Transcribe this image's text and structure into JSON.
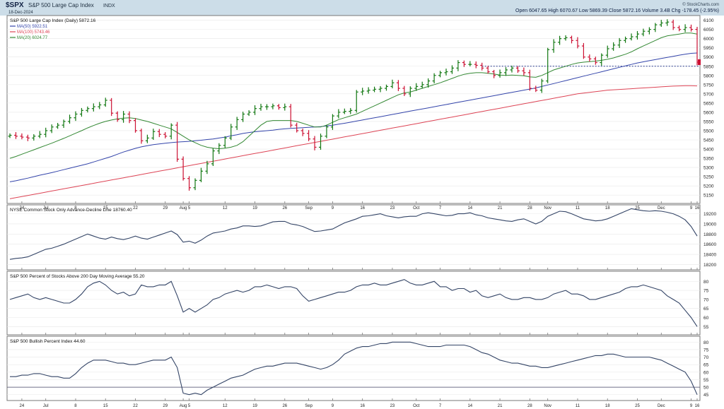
{
  "header": {
    "symbol": "$SPX",
    "name": "S&P 500 Large Cap Index",
    "exchange": "INDX",
    "date": "18-Dec-2024",
    "ohlc_text": "Open 6047.65  High 6070.67  Low 5869.39  Close 5872.16  Volume 3.4B  Chg -178.45 (-2.95%)",
    "brand": "© StockCharts.com",
    "colors": {
      "bar": "#3d6b95",
      "up": "#117711",
      "down": "#cc1133"
    }
  },
  "chart_data": [
    {
      "type": "ohlc",
      "title": "S&P 500 Large Cap Index (Daily) 5872.16",
      "legend": [
        {
          "label": "MA(50) 5922.51",
          "color": "#3344aa"
        },
        {
          "label": "MA(100) 5743.46",
          "color": "#dd4455"
        },
        {
          "label": "MA(20) 6024.77",
          "color": "#338833"
        }
      ],
      "y_ticks": [
        5150,
        5200,
        5250,
        5300,
        5350,
        5400,
        5450,
        5500,
        5550,
        5600,
        5650,
        5700,
        5750,
        5800,
        5850,
        5900,
        5950,
        6000,
        6050,
        6100
      ],
      "ylim": [
        5120,
        6110
      ],
      "reference_line": 5850,
      "x_ticks": [
        "24",
        "Jul",
        "8",
        "15",
        "22",
        "29",
        "Aug",
        "5",
        "12",
        "19",
        "26",
        "Sep",
        "9",
        "16",
        "23",
        "Oct",
        "7",
        "14",
        "21",
        "28",
        "Nov",
        "11",
        "18",
        "25",
        "Dec",
        "9",
        "16"
      ],
      "close": [
        5475,
        5470,
        5465,
        5460,
        5470,
        5480,
        5500,
        5520,
        5530,
        5550,
        5570,
        5590,
        5610,
        5620,
        5630,
        5640,
        5665,
        5595,
        5560,
        5590,
        5555,
        5500,
        5445,
        5460,
        5495,
        5480,
        5470,
        5530,
        5345,
        5240,
        5190,
        5230,
        5280,
        5320,
        5390,
        5420,
        5460,
        5520,
        5560,
        5590,
        5600,
        5620,
        5630,
        5630,
        5635,
        5625,
        5630,
        5530,
        5500,
        5485,
        5455,
        5410,
        5470,
        5520,
        5580,
        5600,
        5605,
        5610,
        5710,
        5715,
        5720,
        5725,
        5730,
        5740,
        5760,
        5730,
        5700,
        5730,
        5740,
        5750,
        5770,
        5800,
        5815,
        5820,
        5840,
        5870,
        5860,
        5860,
        5855,
        5840,
        5820,
        5800,
        5815,
        5830,
        5840,
        5825,
        5815,
        5730,
        5720,
        5770,
        5940,
        5980,
        6000,
        6005,
        5990,
        5960,
        5900,
        5890,
        5870,
        5910,
        5945,
        5965,
        5990,
        6000,
        6010,
        6025,
        6040,
        6050,
        6075,
        6085,
        6090,
        6060,
        6050,
        6060,
        6050,
        5872
      ],
      "ma20": [
        5350,
        5360,
        5372,
        5384,
        5396,
        5408,
        5420,
        5432,
        5445,
        5458,
        5472,
        5486,
        5500,
        5515,
        5528,
        5540,
        5550,
        5558,
        5564,
        5568,
        5570,
        5566,
        5558,
        5550,
        5540,
        5530,
        5520,
        5510,
        5490,
        5470,
        5450,
        5435,
        5420,
        5410,
        5405,
        5402,
        5405,
        5410,
        5420,
        5440,
        5470,
        5500,
        5530,
        5550,
        5555,
        5555,
        5555,
        5555,
        5550,
        5540,
        5530,
        5520,
        5520,
        5530,
        5545,
        5560,
        5570,
        5580,
        5590,
        5605,
        5620,
        5635,
        5650,
        5665,
        5680,
        5695,
        5705,
        5710,
        5720,
        5730,
        5740,
        5750,
        5760,
        5772,
        5784,
        5796,
        5806,
        5812,
        5815,
        5815,
        5812,
        5808,
        5802,
        5800,
        5802,
        5800,
        5798,
        5792,
        5790,
        5800,
        5815,
        5830,
        5840,
        5850,
        5860,
        5868,
        5872,
        5875,
        5878,
        5882,
        5888,
        5895,
        5905,
        5915,
        5928,
        5945,
        5960,
        5975,
        5990,
        6005,
        6015,
        6020,
        6025,
        6030,
        6030,
        6025
      ],
      "ma50": [
        5222,
        5228,
        5235,
        5242,
        5250,
        5258,
        5265,
        5272,
        5280,
        5288,
        5296,
        5304,
        5312,
        5320,
        5330,
        5340,
        5350,
        5360,
        5372,
        5384,
        5394,
        5404,
        5412,
        5418,
        5424,
        5428,
        5432,
        5435,
        5438,
        5440,
        5442,
        5445,
        5448,
        5452,
        5455,
        5460,
        5465,
        5472,
        5478,
        5485,
        5490,
        5494,
        5497,
        5500,
        5503,
        5507,
        5510,
        5512,
        5514,
        5516,
        5518,
        5520,
        5522,
        5526,
        5530,
        5535,
        5540,
        5546,
        5552,
        5558,
        5564,
        5570,
        5576,
        5582,
        5588,
        5594,
        5600,
        5606,
        5612,
        5618,
        5624,
        5630,
        5636,
        5642,
        5648,
        5654,
        5660,
        5666,
        5672,
        5678,
        5684,
        5690,
        5696,
        5702,
        5708,
        5714,
        5720,
        5726,
        5732,
        5740,
        5748,
        5756,
        5764,
        5772,
        5780,
        5788,
        5796,
        5804,
        5812,
        5820,
        5828,
        5836,
        5844,
        5852,
        5860,
        5868,
        5874,
        5880,
        5886,
        5892,
        5898,
        5904,
        5910,
        5915,
        5920,
        5922
      ],
      "ma100": [
        5130,
        5136,
        5142,
        5148,
        5154,
        5160,
        5166,
        5172,
        5178,
        5184,
        5190,
        5196,
        5202,
        5208,
        5214,
        5220,
        5226,
        5232,
        5238,
        5244,
        5250,
        5256,
        5262,
        5268,
        5274,
        5280,
        5286,
        5292,
        5298,
        5304,
        5310,
        5316,
        5322,
        5328,
        5334,
        5340,
        5346,
        5352,
        5358,
        5364,
        5370,
        5376,
        5382,
        5388,
        5394,
        5400,
        5406,
        5412,
        5418,
        5424,
        5430,
        5436,
        5442,
        5448,
        5454,
        5460,
        5466,
        5472,
        5478,
        5484,
        5490,
        5496,
        5502,
        5508,
        5514,
        5520,
        5526,
        5532,
        5538,
        5544,
        5550,
        5556,
        5562,
        5568,
        5574,
        5580,
        5586,
        5592,
        5598,
        5604,
        5610,
        5616,
        5622,
        5628,
        5634,
        5640,
        5646,
        5652,
        5658,
        5664,
        5670,
        5676,
        5682,
        5688,
        5694,
        5700,
        5704,
        5708,
        5712,
        5716,
        5720,
        5722,
        5724,
        5726,
        5728,
        5730,
        5732,
        5734,
        5736,
        5738,
        5740,
        5742,
        5743,
        5744,
        5744,
        5743
      ]
    },
    {
      "type": "line",
      "title": "NYSE Common Stock Only Advance-Decline Line 18760.40",
      "y_ticks": [
        18200,
        18400,
        18600,
        18800,
        19000,
        19200
      ],
      "ylim": [
        18150,
        19320
      ],
      "values": [
        18300,
        18320,
        18330,
        18350,
        18400,
        18450,
        18500,
        18520,
        18560,
        18600,
        18650,
        18700,
        18750,
        18800,
        18760,
        18720,
        18700,
        18740,
        18710,
        18690,
        18720,
        18760,
        18720,
        18700,
        18740,
        18780,
        18820,
        18860,
        18790,
        18640,
        18660,
        18620,
        18680,
        18760,
        18820,
        18840,
        18860,
        18900,
        18920,
        18960,
        18960,
        18950,
        18960,
        19000,
        19040,
        19050,
        19050,
        19000,
        18980,
        18950,
        18900,
        18850,
        18860,
        18880,
        18900,
        18960,
        19020,
        19060,
        19100,
        19150,
        19160,
        19180,
        19200,
        19160,
        19140,
        19120,
        19140,
        19150,
        19150,
        19200,
        19220,
        19200,
        19180,
        19160,
        19170,
        19200,
        19200,
        19220,
        19180,
        19160,
        19120,
        19100,
        19080,
        19060,
        19050,
        19080,
        19100,
        19050,
        19000,
        19050,
        19150,
        19200,
        19250,
        19240,
        19200,
        19150,
        19100,
        19080,
        19060,
        19070,
        19100,
        19150,
        19200,
        19250,
        19300,
        19280,
        19260,
        19250,
        19260,
        19250,
        19230,
        19200,
        19150,
        19080,
        18950,
        18760
      ],
      "color": "#334466"
    },
    {
      "type": "line",
      "title": "S&P 500 Percent of Stocks Above 200 Day Moving Average 55.20",
      "y_ticks": [
        55,
        60,
        65,
        70,
        75,
        80
      ],
      "ylim": [
        52,
        84
      ],
      "values": [
        70,
        71,
        72,
        73,
        71,
        70,
        71,
        70,
        69,
        68,
        68,
        70,
        73,
        77,
        79,
        80,
        78,
        75,
        73,
        74,
        72,
        73,
        78,
        77,
        77,
        78,
        78,
        80,
        72,
        63,
        65,
        63,
        65,
        67,
        70,
        71,
        73,
        74,
        75,
        74,
        75,
        77,
        77,
        78,
        77,
        76,
        77,
        77,
        76,
        72,
        69,
        70,
        71,
        72,
        73,
        74,
        74,
        75,
        77,
        78,
        78,
        79,
        78,
        78,
        79,
        80,
        81,
        79,
        78,
        78,
        79,
        80,
        77,
        77,
        75,
        76,
        76,
        74,
        75,
        72,
        71,
        72,
        73,
        71,
        70,
        70,
        71,
        71,
        70,
        70,
        71,
        73,
        74,
        75,
        73,
        73,
        72,
        70,
        70,
        71,
        72,
        73,
        74,
        76,
        77,
        77,
        78,
        77,
        76,
        75,
        72,
        70,
        68,
        64,
        60,
        55
      ],
      "color": "#334466"
    },
    {
      "type": "line",
      "title": "S&P 500 Bullish Percent Index 44.60",
      "y_ticks": [
        45,
        50,
        55,
        60,
        65,
        70,
        75,
        80
      ],
      "ylim": [
        43,
        82
      ],
      "reference_line": 50,
      "values": [
        57,
        57,
        58,
        58,
        59,
        59,
        58,
        57,
        57,
        56,
        56,
        59,
        63,
        66,
        68,
        68,
        68,
        67,
        66,
        66,
        65,
        65,
        66,
        67,
        68,
        68,
        68,
        70,
        63,
        46,
        45,
        46,
        45,
        48,
        50,
        52,
        54,
        56,
        57,
        58,
        60,
        62,
        63,
        64,
        64,
        65,
        66,
        66,
        66,
        65,
        64,
        63,
        62,
        63,
        65,
        68,
        72,
        74,
        76,
        77,
        77,
        78,
        79,
        79,
        80,
        80,
        80,
        80,
        79,
        78,
        77,
        77,
        77,
        78,
        78,
        78,
        78,
        77,
        75,
        73,
        72,
        70,
        68,
        67,
        66,
        66,
        65,
        64,
        64,
        63,
        63,
        64,
        65,
        66,
        67,
        68,
        69,
        70,
        71,
        71,
        72,
        72,
        71,
        70,
        70,
        70,
        70,
        70,
        69,
        68,
        66,
        64,
        62,
        60,
        54,
        45
      ],
      "color": "#334466"
    }
  ]
}
